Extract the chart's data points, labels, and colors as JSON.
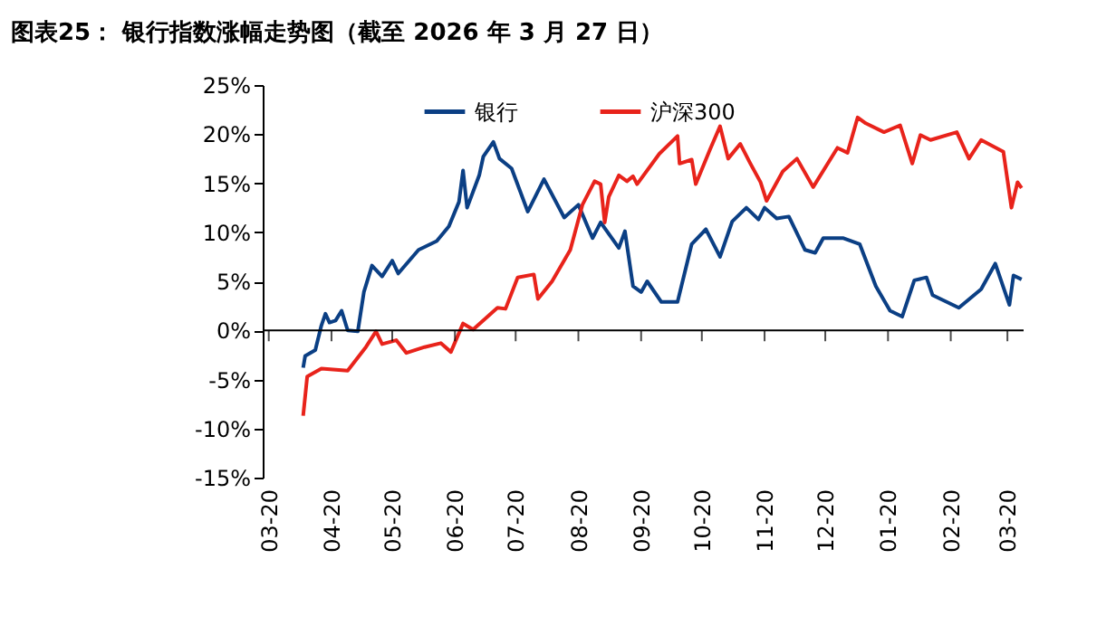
{
  "chart_data": {
    "type": "line",
    "title": "图表25：  银行指数涨幅走势图（截至 2026 年 3 月 27 日）",
    "xlim": [
      "2025-03-17",
      "2026-03-28"
    ],
    "xticks": [
      {
        "value": "2025-03-20",
        "label": "03-20"
      },
      {
        "value": "2025-04-20",
        "label": "04-20"
      },
      {
        "value": "2025-05-20",
        "label": "05-20"
      },
      {
        "value": "2025-06-20",
        "label": "06-20"
      },
      {
        "value": "2025-07-20",
        "label": "07-20"
      },
      {
        "value": "2025-08-20",
        "label": "08-20"
      },
      {
        "value": "2025-09-20",
        "label": "09-20"
      },
      {
        "value": "2025-10-20",
        "label": "10-20"
      },
      {
        "value": "2025-11-20",
        "label": "11-20"
      },
      {
        "value": "2025-12-20",
        "label": "12-20"
      },
      {
        "value": "2026-01-20",
        "label": "01-20"
      },
      {
        "value": "2026-02-20",
        "label": "02-20"
      },
      {
        "value": "2026-03-20",
        "label": "03-20"
      }
    ],
    "ylim": [
      -15,
      25
    ],
    "yticks": [
      {
        "value": -15,
        "label": "-15%"
      },
      {
        "value": -10,
        "label": "-10%"
      },
      {
        "value": -5,
        "label": "-5%"
      },
      {
        "value": 0,
        "label": "0%"
      },
      {
        "value": 5,
        "label": "5%"
      },
      {
        "value": 10,
        "label": "10%"
      },
      {
        "value": 15,
        "label": "15%"
      },
      {
        "value": 20,
        "label": "20%"
      },
      {
        "value": 25,
        "label": "25%"
      }
    ],
    "grid": false,
    "ref_lines": [
      {
        "axis": "y",
        "value": 0,
        "color": "#000000",
        "line_style": "solid"
      }
    ],
    "legend": "top",
    "line_style": "solid",
    "marker": "none",
    "series": [
      {
        "name": "银行",
        "color": "#0b3f84",
        "x": [
          "2025-04-06",
          "2025-04-07",
          "2025-04-12",
          "2025-04-15",
          "2025-04-17",
          "2025-04-19",
          "2025-04-22",
          "2025-04-25",
          "2025-04-28",
          "2025-05-03",
          "2025-05-06",
          "2025-05-10",
          "2025-05-15",
          "2025-05-20",
          "2025-05-23",
          "2025-06-02",
          "2025-06-11",
          "2025-06-17",
          "2025-06-22",
          "2025-06-24",
          "2025-06-26",
          "2025-07-02",
          "2025-07-04",
          "2025-07-09",
          "2025-07-12",
          "2025-07-18",
          "2025-07-26",
          "2025-08-03",
          "2025-08-13",
          "2025-08-20",
          "2025-08-27",
          "2025-08-31",
          "2025-09-09",
          "2025-09-12",
          "2025-09-16",
          "2025-09-20",
          "2025-09-23",
          "2025-09-30",
          "2025-10-08",
          "2025-10-15",
          "2025-10-22",
          "2025-10-29",
          "2025-11-04",
          "2025-11-11",
          "2025-11-17",
          "2025-11-20",
          "2025-11-26",
          "2025-12-02",
          "2025-12-10",
          "2025-12-15",
          "2025-12-19",
          "2025-12-29",
          "2026-01-06",
          "2026-01-14",
          "2026-01-21",
          "2026-01-27",
          "2026-02-02",
          "2026-02-08",
          "2026-02-11",
          "2026-02-24",
          "2026-03-07",
          "2026-03-14",
          "2026-03-21",
          "2026-03-23",
          "2026-03-27"
        ],
        "values": [
          -3.8,
          -2.6,
          -2.0,
          0.5,
          1.7,
          0.8,
          1.0,
          2.0,
          0.0,
          -0.1,
          3.9,
          6.6,
          5.5,
          7.1,
          5.8,
          8.2,
          9.1,
          10.6,
          13.1,
          16.3,
          12.5,
          15.8,
          17.7,
          19.2,
          17.5,
          16.5,
          12.1,
          15.4,
          11.5,
          12.8,
          9.4,
          11.0,
          8.4,
          10.1,
          4.5,
          3.9,
          5.0,
          2.9,
          2.9,
          8.8,
          10.3,
          7.5,
          11.1,
          12.5,
          11.3,
          12.5,
          11.4,
          11.6,
          8.2,
          7.9,
          9.4,
          9.4,
          8.8,
          4.5,
          2.0,
          1.4,
          5.1,
          5.4,
          3.6,
          2.3,
          4.2,
          6.8,
          2.6,
          5.6,
          5.2
        ]
      },
      {
        "name": "沪深300",
        "color": "#e8231b",
        "x": [
          "2025-04-06",
          "2025-04-08",
          "2025-04-15",
          "2025-04-28",
          "2025-05-07",
          "2025-05-12",
          "2025-05-15",
          "2025-05-22",
          "2025-05-27",
          "2025-06-05",
          "2025-06-13",
          "2025-06-18",
          "2025-06-24",
          "2025-06-29",
          "2025-07-11",
          "2025-07-15",
          "2025-07-21",
          "2025-07-29",
          "2025-07-31",
          "2025-08-07",
          "2025-08-16",
          "2025-08-22",
          "2025-08-28",
          "2025-08-31",
          "2025-09-02",
          "2025-09-04",
          "2025-09-09",
          "2025-09-11",
          "2025-09-13",
          "2025-09-16",
          "2025-09-18",
          "2025-09-29",
          "2025-10-08",
          "2025-10-09",
          "2025-10-15",
          "2025-10-17",
          "2025-10-24",
          "2025-10-29",
          "2025-11-02",
          "2025-11-08",
          "2025-11-13",
          "2025-11-18",
          "2025-11-21",
          "2025-11-29",
          "2025-12-06",
          "2025-12-14",
          "2025-12-26",
          "2025-12-31",
          "2026-01-05",
          "2026-01-09",
          "2026-01-18",
          "2026-01-26",
          "2026-02-01",
          "2026-02-05",
          "2026-02-10",
          "2026-02-23",
          "2026-03-01",
          "2026-03-07",
          "2026-03-18",
          "2026-03-22",
          "2026-03-25",
          "2026-03-27"
        ],
        "values": [
          -8.7,
          -4.7,
          -3.9,
          -4.1,
          -1.7,
          -0.1,
          -1.4,
          -1.0,
          -2.3,
          -1.7,
          -1.3,
          -2.2,
          0.7,
          0.1,
          2.3,
          2.2,
          5.4,
          5.7,
          3.2,
          5.0,
          8.2,
          12.8,
          15.2,
          14.9,
          11.0,
          13.6,
          15.8,
          15.5,
          15.2,
          15.7,
          14.9,
          18.0,
          19.8,
          17.0,
          17.4,
          14.9,
          18.4,
          20.8,
          17.5,
          19.0,
          17.0,
          15.1,
          13.2,
          16.2,
          17.5,
          14.6,
          18.6,
          18.1,
          21.7,
          21.1,
          20.2,
          20.9,
          17.0,
          19.9,
          19.4,
          20.2,
          17.5,
          19.4,
          18.2,
          12.5,
          15.1,
          14.5
        ]
      }
    ]
  }
}
